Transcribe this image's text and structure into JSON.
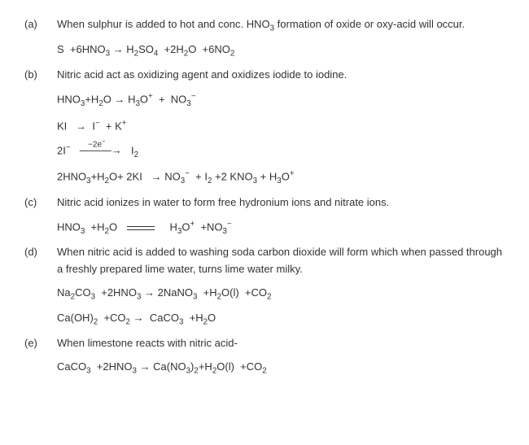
{
  "items": [
    {
      "label": "(a)",
      "text": "When sulphur is added to hot and conc. HNO₃ formation of oxide or oxy-acid will occur.",
      "equations": [
        "eq_a1"
      ]
    },
    {
      "label": "(b)",
      "text": "Nitric acid act as oxidizing agent and oxidizes iodide to iodine.",
      "equations": [
        "eq_b1",
        "eq_b2",
        "eq_b3",
        "eq_b4"
      ]
    },
    {
      "label": "(c)",
      "text": "Nitric acid ionizes in water to form free hydronium ions and nitrate ions.",
      "equations": [
        "eq_c1"
      ]
    },
    {
      "label": "(d)",
      "text": "When nitric acid is added to washing soda carbon dioxide will form which when passed through a freshly prepared lime water, turns lime water milky.",
      "equations": [
        "eq_d1",
        "eq_d2"
      ]
    },
    {
      "label": "(e)",
      "text": "When limestone reacts with nitric acid-",
      "equations": [
        "eq_e1"
      ]
    }
  ]
}
